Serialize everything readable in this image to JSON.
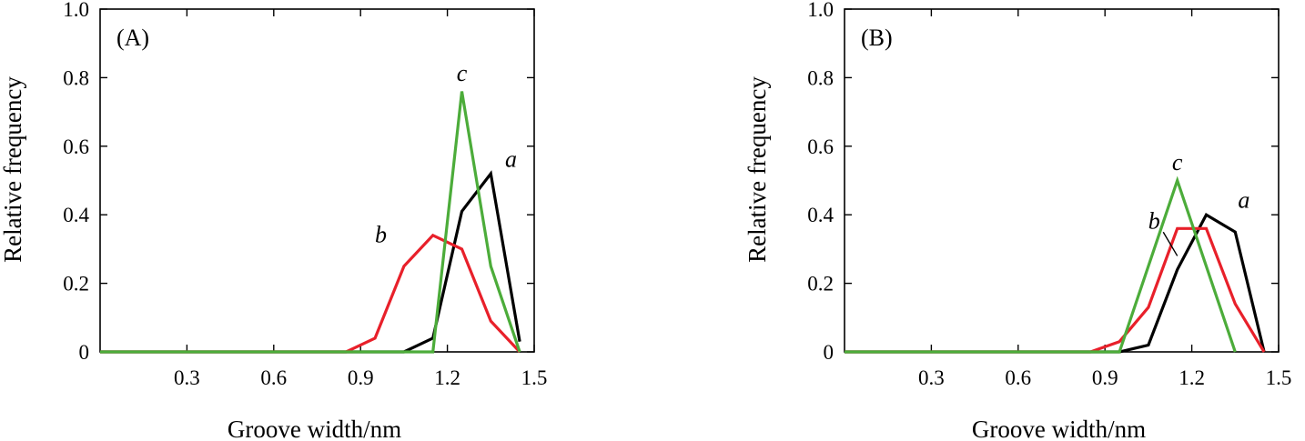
{
  "chart_data": [
    {
      "type": "line",
      "panel_label": "(A)",
      "xlabel": "Groove width/nm",
      "ylabel": "Relative frequency",
      "xlim": [
        0,
        1.5
      ],
      "ylim": [
        0,
        1.0
      ],
      "xticks": [
        0.3,
        0.6,
        0.9,
        1.2,
        1.5
      ],
      "xtick_labels": [
        "0.3",
        "0.6",
        "0.9",
        "1.2",
        "1.5"
      ],
      "yticks": [
        0,
        0.2,
        0.4,
        0.6,
        0.8,
        1.0
      ],
      "ytick_labels": [
        "0",
        "0.2",
        "0.4",
        "0.6",
        "0.8",
        "1.0"
      ],
      "grid": false,
      "series": [
        {
          "name": "a",
          "color": "#000000",
          "label_at": [
            1.42,
            0.54
          ],
          "x": [
            0,
            1.05,
            1.15,
            1.25,
            1.35,
            1.45
          ],
          "y": [
            0,
            0,
            0.04,
            0.41,
            0.52,
            0.03
          ]
        },
        {
          "name": "b",
          "color": "#e8202a",
          "label_at": [
            0.97,
            0.32
          ],
          "x": [
            0,
            0.85,
            0.95,
            1.05,
            1.15,
            1.25,
            1.35,
            1.45
          ],
          "y": [
            0,
            0,
            0.04,
            0.25,
            0.34,
            0.3,
            0.09,
            0
          ]
        },
        {
          "name": "c",
          "color": "#4cac3a",
          "label_at": [
            1.25,
            0.79
          ],
          "x": [
            0,
            1.15,
            1.25,
            1.35,
            1.45
          ],
          "y": [
            0,
            0,
            0.76,
            0.25,
            0
          ]
        }
      ]
    },
    {
      "type": "line",
      "panel_label": "(B)",
      "xlabel": "Groove width/nm",
      "ylabel": "Relative frequency",
      "xlim": [
        0,
        1.5
      ],
      "ylim": [
        0,
        1.0
      ],
      "xticks": [
        0.3,
        0.6,
        0.9,
        1.2,
        1.5
      ],
      "xtick_labels": [
        "0.3",
        "0.6",
        "0.9",
        "1.2",
        "1.5"
      ],
      "yticks": [
        0,
        0.2,
        0.4,
        0.6,
        0.8,
        1.0
      ],
      "ytick_labels": [
        "0",
        "0.2",
        "0.4",
        "0.6",
        "0.8",
        "1.0"
      ],
      "grid": false,
      "series": [
        {
          "name": "a",
          "color": "#000000",
          "label_at": [
            1.38,
            0.42
          ],
          "x": [
            0,
            0.95,
            1.05,
            1.15,
            1.25,
            1.35,
            1.45
          ],
          "y": [
            0,
            0,
            0.02,
            0.24,
            0.4,
            0.35,
            0
          ]
        },
        {
          "name": "b",
          "color": "#e8202a",
          "label_at": [
            1.07,
            0.36
          ],
          "pointer_to": [
            1.15,
            0.28
          ],
          "x": [
            0,
            0.85,
            0.95,
            1.05,
            1.15,
            1.25,
            1.35,
            1.45
          ],
          "y": [
            0,
            0,
            0.03,
            0.13,
            0.36,
            0.36,
            0.14,
            0
          ]
        },
        {
          "name": "c",
          "color": "#4cac3a",
          "label_at": [
            1.15,
            0.53
          ],
          "x": [
            0,
            0.95,
            1.15,
            1.35
          ],
          "y": [
            0,
            0,
            0.5,
            0
          ]
        }
      ]
    }
  ]
}
